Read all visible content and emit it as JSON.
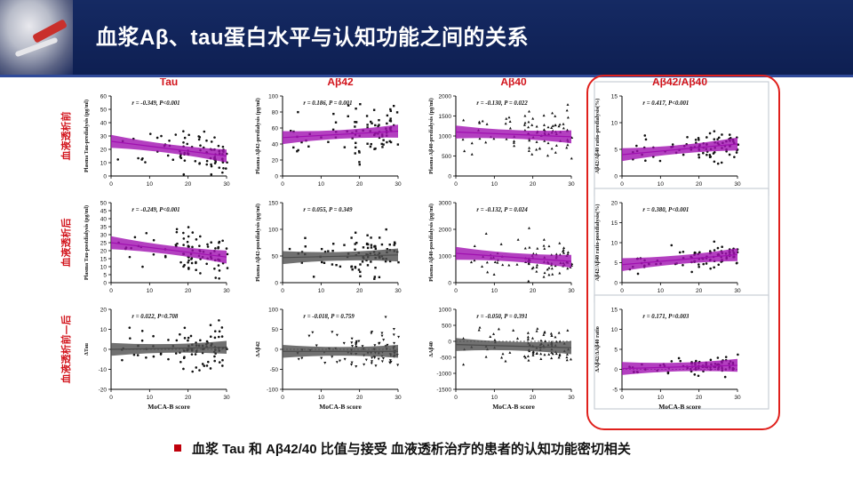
{
  "slide": {
    "title": "血浆Aβ、tau蛋白水平与认知功能之间的关系",
    "caption": "血浆 Tau 和 Aβ42/40 比值与接受 血液透析治疗的患者的认知功能密切相关"
  },
  "colors": {
    "header_bg": "#12245a",
    "accent_red": "#e0201c",
    "purple_band": "#a010b0",
    "gray_band": "#555555"
  },
  "column_titles": [
    "Tau",
    "Aβ42",
    "Aβ40",
    "Aβ42/Aβ40"
  ],
  "row_labels": [
    "血液透析前",
    "血液透析后",
    "血液透析前—后"
  ],
  "chart_data": [
    {
      "type": "scatter",
      "column": "Tau",
      "row": "血液透析前",
      "ylabel": "Plasma Tau-predialysis (pg/ml)",
      "xlabel": "",
      "xlim": [
        0,
        30
      ],
      "ylim": [
        0,
        60
      ],
      "yticks": [
        0,
        10,
        20,
        30,
        40,
        50,
        60
      ],
      "xticks": [
        0,
        10,
        20,
        30
      ],
      "stat": "r = -0.349, P<0.001",
      "fit": {
        "y0": 26,
        "y30": 15
      },
      "band": "purple",
      "scatter_center": [
        25,
        15
      ],
      "spread": 8,
      "marker": "circle"
    },
    {
      "type": "scatter",
      "column": "Aβ42",
      "row": "血液透析前",
      "ylabel": "Plasma Aβ42-predialysis (pg/ml)",
      "xlabel": "",
      "xlim": [
        0,
        30
      ],
      "ylim": [
        0,
        100
      ],
      "yticks": [
        0,
        20,
        40,
        60,
        80,
        100
      ],
      "xticks": [
        0,
        10,
        20,
        30
      ],
      "stat": "r = 0.186, P = 0.001",
      "fit": {
        "y0": 48,
        "y30": 56
      },
      "band": "purple",
      "scatter_center": [
        25,
        52
      ],
      "spread": 15,
      "marker": "square"
    },
    {
      "type": "scatter",
      "column": "Aβ40",
      "row": "血液透析前",
      "ylabel": "Plasma Aβ40-predialysis (pg/ml)",
      "xlabel": "",
      "xlim": [
        0,
        30
      ],
      "ylim": [
        0,
        2000
      ],
      "yticks": [
        0,
        500,
        1000,
        1500,
        2000
      ],
      "xticks": [
        0,
        10,
        20,
        30
      ],
      "stat": "r = -0.130, P = 0.022",
      "fit": {
        "y0": 1100,
        "y30": 980
      },
      "band": "purple",
      "scatter_center": [
        25,
        1000
      ],
      "spread": 280,
      "marker": "triangle"
    },
    {
      "type": "scatter",
      "column": "Aβ42/Aβ40",
      "row": "血液透析前",
      "ylabel": "Aβ42/Aβ40 ratio-predialysis(%)",
      "xlabel": "",
      "xlim": [
        0,
        30
      ],
      "ylim": [
        0,
        15
      ],
      "yticks": [
        0,
        5,
        10,
        15
      ],
      "xticks": [
        0,
        10,
        20,
        30
      ],
      "stat": "r = 0.417, P<0.001",
      "fit": {
        "y0": 4,
        "y30": 6
      },
      "band": "purple",
      "scatter_center": [
        25,
        5.5
      ],
      "spread": 1.2,
      "marker": "circle"
    },
    {
      "type": "scatter",
      "column": "Tau",
      "row": "血液透析后",
      "ylabel": "Plasma Tau-postdialysis (pg/ml)",
      "xlabel": "",
      "xlim": [
        0,
        30
      ],
      "ylim": [
        0,
        50
      ],
      "yticks": [
        0,
        5,
        10,
        15,
        20,
        25,
        30,
        35,
        40,
        45,
        50
      ],
      "xticks": [
        0,
        10,
        20,
        30
      ],
      "stat": "r = -0.249, P<0.001",
      "fit": {
        "y0": 25,
        "y30": 16
      },
      "band": "purple",
      "scatter_center": [
        25,
        18
      ],
      "spread": 7,
      "marker": "circle"
    },
    {
      "type": "scatter",
      "column": "Aβ42",
      "row": "血液透析后",
      "ylabel": "Plasma Aβ42-postdialysis (pg/ml)",
      "xlabel": "",
      "xlim": [
        0,
        30
      ],
      "ylim": [
        0,
        150
      ],
      "yticks": [
        0,
        50,
        100,
        150
      ],
      "xticks": [
        0,
        10,
        20,
        30
      ],
      "stat": "r = 0.055, P = 0.349",
      "fit": {
        "y0": 47,
        "y30": 52
      },
      "band": "gray",
      "scatter_center": [
        25,
        50
      ],
      "spread": 20,
      "marker": "square"
    },
    {
      "type": "scatter",
      "column": "Aβ40",
      "row": "血液透析后",
      "ylabel": "Plasma Aβ40-postdialysis (pg/ml)",
      "xlabel": "",
      "xlim": [
        0,
        30
      ],
      "ylim": [
        0,
        3000
      ],
      "yticks": [
        0,
        1000,
        2000,
        3000
      ],
      "xticks": [
        0,
        10,
        20,
        30
      ],
      "stat": "r = -0.132, P = 0.024",
      "fit": {
        "y0": 1100,
        "y30": 800
      },
      "band": "purple",
      "scatter_center": [
        25,
        900
      ],
      "spread": 350,
      "marker": "triangle"
    },
    {
      "type": "scatter",
      "column": "Aβ42/Aβ40",
      "row": "血液透析后",
      "ylabel": "Aβ42/Aβ40 ratio-postdialysis(%)",
      "xlabel": "",
      "xlim": [
        0,
        30
      ],
      "ylim": [
        0,
        20
      ],
      "yticks": [
        0,
        5,
        10,
        15,
        20
      ],
      "xticks": [
        0,
        10,
        20,
        30
      ],
      "stat": "r = 0.380, P<0.001",
      "fit": {
        "y0": 4.5,
        "y30": 7
      },
      "band": "purple",
      "scatter_center": [
        25,
        6
      ],
      "spread": 1.3,
      "marker": "circle"
    },
    {
      "type": "scatter",
      "column": "Tau",
      "row": "血液透析前—后",
      "ylabel": "ΔTau",
      "xlabel": "MoCA-B score",
      "xlim": [
        0,
        30
      ],
      "ylim": [
        -20,
        20
      ],
      "yticks": [
        -20,
        -10,
        0,
        10,
        20
      ],
      "xticks": [
        0,
        10,
        20,
        30
      ],
      "stat": "r = 0.022, P=0.708",
      "fit": {
        "y0": 0,
        "y30": 1
      },
      "band": "gray",
      "scatter_center": [
        25,
        0
      ],
      "spread": 5,
      "marker": "circle"
    },
    {
      "type": "scatter",
      "column": "Aβ42",
      "row": "血液透析前—后",
      "ylabel": "ΔAβ42",
      "xlabel": "MoCA-B score",
      "xlim": [
        0,
        30
      ],
      "ylim": [
        -100,
        100
      ],
      "yticks": [
        -100,
        -50,
        0,
        50,
        100
      ],
      "xticks": [
        0,
        10,
        20,
        30
      ],
      "stat": "r = -0.018, P = 0.759",
      "fit": {
        "y0": -5,
        "y30": -5
      },
      "band": "gray",
      "scatter_center": [
        25,
        -5
      ],
      "spread": 25,
      "marker": "triangle-down"
    },
    {
      "type": "scatter",
      "column": "Aβ40",
      "row": "血液透析前—后",
      "ylabel": "ΔAβ40",
      "xlabel": "MoCA-B score",
      "xlim": [
        0,
        30
      ],
      "ylim": [
        -1500,
        1000
      ],
      "yticks": [
        -1500,
        -1000,
        -500,
        0,
        500,
        1000
      ],
      "xticks": [
        0,
        10,
        20,
        30
      ],
      "stat": "r = -0.050, P = 0.391",
      "fit": {
        "y0": -100,
        "y30": -200
      },
      "band": "gray",
      "scatter_center": [
        25,
        -150
      ],
      "spread": 300,
      "marker": "triangle"
    },
    {
      "type": "scatter",
      "column": "Aβ42/Aβ40",
      "row": "血液透析前—后",
      "ylabel": "ΔAβ42/ΔAβ40 ratio",
      "xlabel": "MoCA-B score",
      "xlim": [
        0,
        30
      ],
      "ylim": [
        -5,
        15
      ],
      "yticks": [
        -5,
        0,
        5,
        10,
        15
      ],
      "xticks": [
        0,
        10,
        20,
        30
      ],
      "stat": "r = 0.171, P=0.003",
      "fit": {
        "y0": 0.2,
        "y30": 1
      },
      "band": "purple",
      "scatter_center": [
        25,
        0.8
      ],
      "spread": 1,
      "marker": "circle"
    }
  ]
}
